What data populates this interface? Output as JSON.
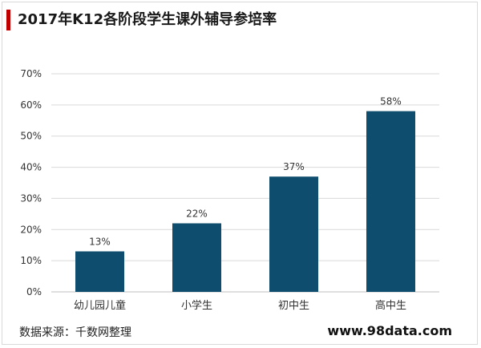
{
  "title": "2017年K12各阶段学生课外辅导参培率",
  "source": "数据来源：千数网整理",
  "watermark": "www.98data.com",
  "colors": {
    "bar": "#0e4d6e",
    "accent": "#c00000",
    "grid": "#d9d9d9"
  },
  "chart_data": {
    "type": "bar",
    "categories": [
      "幼儿园儿童",
      "小学生",
      "初中生",
      "高中生"
    ],
    "values": [
      13,
      22,
      37,
      58
    ],
    "data_labels": [
      "13%",
      "22%",
      "37%",
      "58%"
    ],
    "title": "2017年K12各阶段学生课外辅导参培率",
    "xlabel": "",
    "ylabel": "",
    "ylim": [
      0,
      70
    ],
    "yticks": [
      "0%",
      "10%",
      "20%",
      "30%",
      "40%",
      "50%",
      "60%",
      "70%"
    ],
    "grid": true,
    "legend": "none"
  }
}
